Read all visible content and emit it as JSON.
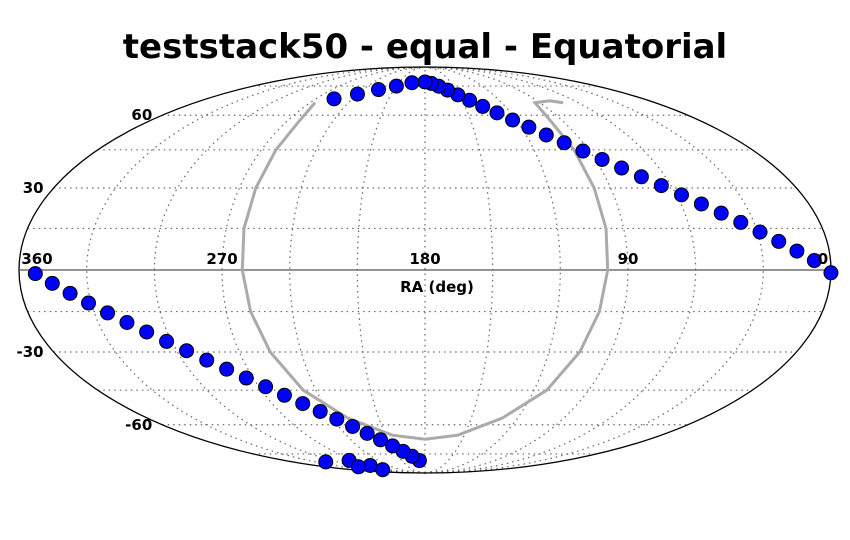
{
  "chart_data": {
    "type": "scatter",
    "projection": "mollweide",
    "title": "teststack50 - equal - Equatorial",
    "xlabel": "RA (deg)",
    "ylabel": "",
    "grid": true,
    "x_ticks": [
      "360",
      "270",
      "180",
      "90",
      "0"
    ],
    "x_tick_values": [
      360,
      270,
      180,
      90,
      0
    ],
    "y_ticks": [
      "60",
      "30",
      "-30",
      "-60"
    ],
    "y_tick_values": [
      60,
      30,
      -30,
      -60
    ],
    "xlim": [
      360,
      0
    ],
    "ylim": [
      -90,
      90
    ],
    "marker_color": "#0000ff",
    "marker_edge_color": "#000000",
    "curve_color": "#aaaaaa",
    "points": [
      {
        "ra": 0,
        "dec": -1.0
      },
      {
        "ra": 7.2,
        "dec": 3.4
      },
      {
        "ra": 14.4,
        "dec": 6.8
      },
      {
        "ra": 21.6,
        "dec": 10.3
      },
      {
        "ra": 28.8,
        "dec": 13.7
      },
      {
        "ra": 36.0,
        "dec": 17.2
      },
      {
        "ra": 43.2,
        "dec": 20.6
      },
      {
        "ra": 50.4,
        "dec": 24.0
      },
      {
        "ra": 57.6,
        "dec": 27.4
      },
      {
        "ra": 64.8,
        "dec": 30.9
      },
      {
        "ra": 72.0,
        "dec": 34.3
      },
      {
        "ra": 79.2,
        "dec": 37.7
      },
      {
        "ra": 86.4,
        "dec": 41.1
      },
      {
        "ra": 93.6,
        "dec": 44.5
      },
      {
        "ra": 100.8,
        "dec": 47.9
      },
      {
        "ra": 108.0,
        "dec": 51.2
      },
      {
        "ra": 115.2,
        "dec": 54.6
      },
      {
        "ra": 122.4,
        "dec": 57.8
      },
      {
        "ra": 129.6,
        "dec": 61.1
      },
      {
        "ra": 136.8,
        "dec": 64.2
      },
      {
        "ra": 144.0,
        "dec": 67.3
      },
      {
        "ra": 151.2,
        "dec": 70.1
      },
      {
        "ra": 158.4,
        "dec": 72.7
      },
      {
        "ra": 165.6,
        "dec": 74.9
      },
      {
        "ra": 172.8,
        "dec": 76.6
      },
      {
        "ra": 180.0,
        "dec": 77.5
      },
      {
        "ra": 195.0,
        "dec": 77.0
      },
      {
        "ra": 210.0,
        "dec": 75.0
      },
      {
        "ra": 225.0,
        "dec": 73.0
      },
      {
        "ra": 240.0,
        "dec": 70.5
      },
      {
        "ra": 255.0,
        "dec": 68.0
      },
      {
        "ra": 277.0,
        "dec": -79.0
      },
      {
        "ra": 270.0,
        "dec": -82.5
      },
      {
        "ra": 285.0,
        "dec": -86.0
      },
      {
        "ra": 300.0,
        "dec": -83.5
      },
      {
        "ra": 315.0,
        "dec": -80.0
      },
      {
        "ra": 187.2,
        "dec": -79.1
      },
      {
        "ra": 194.4,
        "dec": -76.4
      },
      {
        "ra": 201.6,
        "dec": -73.5
      },
      {
        "ra": 208.8,
        "dec": -70.5
      },
      {
        "ra": 216.0,
        "dec": -67.3
      },
      {
        "ra": 223.2,
        "dec": -64.1
      },
      {
        "ra": 230.4,
        "dec": -60.8
      },
      {
        "ra": 237.6,
        "dec": -57.4
      },
      {
        "ra": 244.8,
        "dec": -54.0
      },
      {
        "ra": 252.0,
        "dec": -50.6
      },
      {
        "ra": 259.2,
        "dec": -47.1
      },
      {
        "ra": 266.4,
        "dec": -43.6
      },
      {
        "ra": 273.6,
        "dec": -40.1
      },
      {
        "ra": 280.8,
        "dec": -36.6
      },
      {
        "ra": 288.0,
        "dec": -33.1
      },
      {
        "ra": 295.2,
        "dec": -29.5
      },
      {
        "ra": 302.4,
        "dec": -26.0
      },
      {
        "ra": 309.6,
        "dec": -22.5
      },
      {
        "ra": 316.8,
        "dec": -19.0
      },
      {
        "ra": 324.0,
        "dec": -15.5
      },
      {
        "ra": 331.2,
        "dec": -11.9
      },
      {
        "ra": 338.4,
        "dec": -8.4
      },
      {
        "ra": 345.6,
        "dec": -4.8
      },
      {
        "ra": 352.8,
        "dec": -1.3
      }
    ],
    "curve": [
      {
        "ra": 266,
        "dec": 66
      },
      {
        "ra": 262,
        "dec": 57
      },
      {
        "ra": 262,
        "dec": 45
      },
      {
        "ra": 262,
        "dec": 30
      },
      {
        "ra": 262,
        "dec": 15
      },
      {
        "ra": 261,
        "dec": 0
      },
      {
        "ra": 259,
        "dec": -15
      },
      {
        "ra": 255,
        "dec": -30
      },
      {
        "ra": 247,
        "dec": -45
      },
      {
        "ra": 230,
        "dec": -57
      },
      {
        "ra": 205,
        "dec": -65
      },
      {
        "ra": 180,
        "dec": -67
      },
      {
        "ra": 155,
        "dec": -65
      },
      {
        "ra": 130,
        "dec": -57
      },
      {
        "ra": 113,
        "dec": -45
      },
      {
        "ra": 105,
        "dec": -30
      },
      {
        "ra": 101,
        "dec": -15
      },
      {
        "ra": 99,
        "dec": 0
      },
      {
        "ra": 98,
        "dec": 15
      },
      {
        "ra": 98,
        "dec": 30
      },
      {
        "ra": 98,
        "dec": 45
      },
      {
        "ra": 98,
        "dec": 57
      },
      {
        "ra": 94,
        "dec": 66
      },
      {
        "ra": 80,
        "dec": 67
      },
      {
        "ra": 72,
        "dec": 66
      }
    ]
  }
}
